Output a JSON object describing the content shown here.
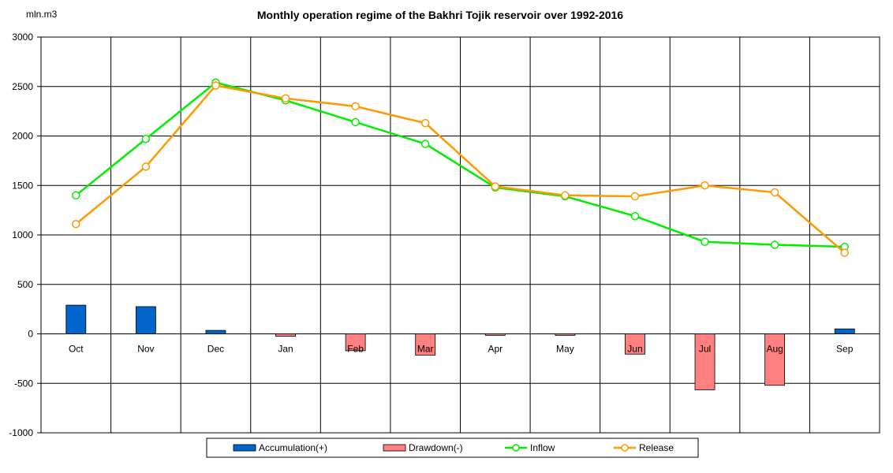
{
  "chart_data": {
    "type": "bar",
    "title": "Monthly operation regime of the Bakhri Tojik reservoir over 1992-2016",
    "unit_label": "mln.m3",
    "categories": [
      "Oct",
      "Nov",
      "Dec",
      "Jan",
      "Feb",
      "Mar",
      "Apr",
      "May",
      "Jun",
      "Jul",
      "Aug",
      "Sep"
    ],
    "ylim": [
      -1000,
      3000
    ],
    "yticks": [
      3000,
      2500,
      2000,
      1500,
      1000,
      500,
      0,
      -500,
      -1000
    ],
    "ytick_labels": [
      "3000",
      "2500",
      "2000",
      "1500",
      "1000",
      "500",
      "0",
      "-500",
      "-1000"
    ],
    "grid": true,
    "legend_position": "bottom",
    "series": [
      {
        "name": "Accumulation(+)",
        "kind": "bar",
        "color": "#0066cc",
        "values": [
          290,
          275,
          35,
          0,
          0,
          0,
          0,
          0,
          0,
          0,
          0,
          50
        ]
      },
      {
        "name": "Drawdown(-)",
        "kind": "bar",
        "color": "#ff8080",
        "values": [
          0,
          0,
          0,
          -25,
          -170,
          -215,
          -15,
          -15,
          -205,
          -565,
          -520,
          0
        ]
      },
      {
        "name": "Inflow",
        "kind": "line",
        "color": "#00ee00",
        "values": [
          1400,
          1970,
          2540,
          2360,
          2140,
          1920,
          1480,
          1390,
          1190,
          930,
          900,
          880
        ]
      },
      {
        "name": "Release",
        "kind": "line",
        "color": "#ff9900",
        "values": [
          1110,
          1690,
          2510,
          2380,
          2300,
          2130,
          1490,
          1400,
          1390,
          1500,
          1430,
          820
        ]
      }
    ]
  }
}
